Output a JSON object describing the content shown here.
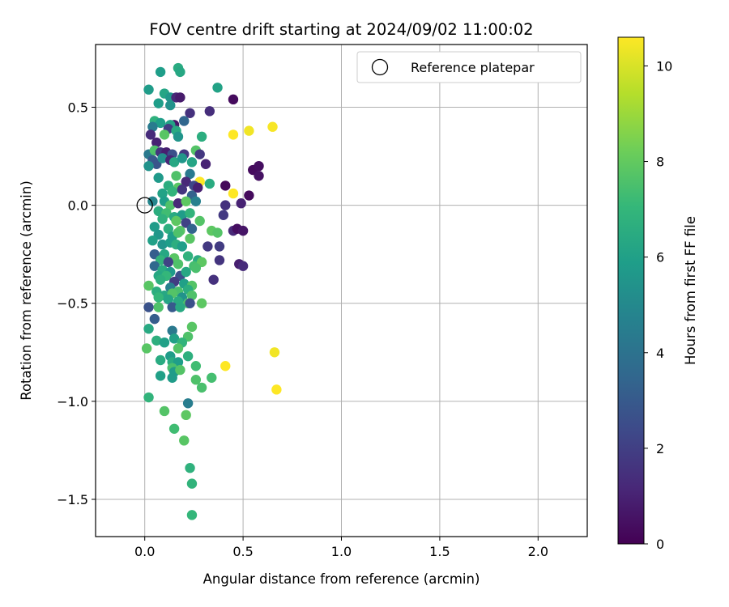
{
  "chart_data": {
    "type": "scatter",
    "title": "FOV centre drift starting at 2024/09/02 11:00:02",
    "xlabel": "Angular distance from reference (arcmin)",
    "ylabel": "Rotation from reference (arcmin)",
    "xlim": [
      -0.25,
      2.25
    ],
    "ylim": [
      -1.69,
      0.82
    ],
    "xticks": [
      0.0,
      0.5,
      1.0,
      1.5,
      2.0
    ],
    "xtick_labels": [
      "0.0",
      "0.5",
      "1.0",
      "1.5",
      "2.0"
    ],
    "yticks": [
      0.5,
      0.0,
      -0.5,
      -1.0,
      -1.5
    ],
    "ytick_labels": [
      "0.5",
      "0.0",
      "−0.5",
      "−1.0",
      "−1.5"
    ],
    "grid": true,
    "colormap": "viridis",
    "colorbar": {
      "label": "Hours from first FF file",
      "range": [
        0,
        10.6
      ],
      "ticks": [
        0,
        2,
        4,
        6,
        8,
        10
      ],
      "tick_labels": [
        "0",
        "2",
        "4",
        "6",
        "8",
        "10"
      ]
    },
    "legend": {
      "position": "top-right",
      "entries": [
        {
          "marker": "open-circle",
          "label": "Reference platepar"
        }
      ]
    },
    "reference_point": {
      "x": 0.0,
      "y": 0.0
    },
    "points": [
      [
        0.17,
        0.7,
        6.5
      ],
      [
        0.08,
        0.68,
        5.9
      ],
      [
        0.18,
        0.68,
        6.3
      ],
      [
        0.37,
        0.6,
        6.1
      ],
      [
        0.02,
        0.59,
        5.8
      ],
      [
        0.1,
        0.57,
        6.2
      ],
      [
        0.13,
        0.55,
        5.6
      ],
      [
        0.16,
        0.55,
        1.2
      ],
      [
        0.18,
        0.55,
        0.8
      ],
      [
        0.45,
        0.54,
        0.3
      ],
      [
        0.07,
        0.52,
        5.9
      ],
      [
        0.13,
        0.51,
        5.4
      ],
      [
        0.33,
        0.48,
        1.4
      ],
      [
        0.23,
        0.47,
        1.5
      ],
      [
        0.2,
        0.43,
        3.5
      ],
      [
        0.05,
        0.43,
        6.8
      ],
      [
        0.08,
        0.42,
        5.9
      ],
      [
        0.15,
        0.41,
        0.7
      ],
      [
        0.13,
        0.41,
        6.1
      ],
      [
        0.04,
        0.4,
        4.4
      ],
      [
        0.12,
        0.39,
        1.9
      ],
      [
        0.16,
        0.38,
        6.4
      ],
      [
        0.53,
        0.38,
        10.4
      ],
      [
        0.65,
        0.4,
        10.5
      ],
      [
        0.45,
        0.36,
        10.6
      ],
      [
        0.03,
        0.36,
        1.3
      ],
      [
        0.1,
        0.36,
        7.8
      ],
      [
        0.17,
        0.35,
        5.5
      ],
      [
        0.29,
        0.35,
        6.6
      ],
      [
        0.06,
        0.32,
        1.0
      ],
      [
        0.02,
        0.26,
        4.3
      ],
      [
        0.05,
        0.28,
        7.6
      ],
      [
        0.08,
        0.27,
        1.6
      ],
      [
        0.11,
        0.27,
        0.9
      ],
      [
        0.14,
        0.26,
        2.6
      ],
      [
        0.2,
        0.26,
        1.8
      ],
      [
        0.26,
        0.28,
        7.7
      ],
      [
        0.28,
        0.26,
        1.7
      ],
      [
        0.04,
        0.23,
        3.0
      ],
      [
        0.06,
        0.21,
        2.8
      ],
      [
        0.09,
        0.24,
        5.2
      ],
      [
        0.13,
        0.23,
        1.1
      ],
      [
        0.15,
        0.22,
        6.3
      ],
      [
        0.19,
        0.24,
        5.6
      ],
      [
        0.24,
        0.22,
        6.2
      ],
      [
        0.31,
        0.21,
        1.0
      ],
      [
        0.02,
        0.2,
        5.4
      ],
      [
        0.55,
        0.18,
        0.3
      ],
      [
        0.58,
        0.2,
        0.4
      ],
      [
        0.58,
        0.15,
        0.5
      ],
      [
        0.07,
        0.14,
        5.7
      ],
      [
        0.16,
        0.15,
        7.6
      ],
      [
        0.23,
        0.16,
        4.3
      ],
      [
        0.28,
        0.12,
        10.6
      ],
      [
        0.33,
        0.11,
        6.5
      ],
      [
        0.41,
        0.1,
        0.2
      ],
      [
        0.12,
        0.1,
        6.6
      ],
      [
        0.17,
        0.09,
        7.8
      ],
      [
        0.21,
        0.12,
        1.2
      ],
      [
        0.25,
        0.1,
        2.3
      ],
      [
        0.09,
        0.06,
        6.1
      ],
      [
        0.14,
        0.07,
        6.9
      ],
      [
        0.19,
        0.08,
        1.6
      ],
      [
        0.24,
        0.05,
        3.3
      ],
      [
        0.27,
        0.09,
        0.9
      ],
      [
        0.45,
        0.06,
        10.6
      ],
      [
        0.53,
        0.05,
        0.3
      ],
      [
        0.49,
        0.01,
        1.0
      ],
      [
        0.04,
        0.02,
        4.9
      ],
      [
        0.1,
        0.02,
        5.9
      ],
      [
        0.13,
        0.0,
        7.6
      ],
      [
        0.17,
        0.01,
        1.2
      ],
      [
        0.21,
        0.02,
        7.9
      ],
      [
        0.26,
        0.02,
        4.6
      ],
      [
        0.41,
        0.0,
        1.5
      ],
      [
        0.07,
        -0.03,
        6.6
      ],
      [
        0.11,
        -0.04,
        7.3
      ],
      [
        0.15,
        -0.06,
        6.4
      ],
      [
        0.19,
        -0.05,
        5.8
      ],
      [
        0.23,
        -0.04,
        6.9
      ],
      [
        0.4,
        -0.05,
        1.8
      ],
      [
        0.09,
        -0.07,
        6.8
      ],
      [
        0.16,
        -0.08,
        7.9
      ],
      [
        0.21,
        -0.09,
        2.1
      ],
      [
        0.28,
        -0.08,
        7.7
      ],
      [
        0.05,
        -0.11,
        5.8
      ],
      [
        0.12,
        -0.12,
        6.7
      ],
      [
        0.18,
        -0.13,
        7.8
      ],
      [
        0.24,
        -0.12,
        3.4
      ],
      [
        0.34,
        -0.13,
        7.9
      ],
      [
        0.37,
        -0.14,
        7.7
      ],
      [
        0.45,
        -0.13,
        1.2
      ],
      [
        0.47,
        -0.12,
        0.4
      ],
      [
        0.5,
        -0.13,
        0.6
      ],
      [
        0.07,
        -0.15,
        5.6
      ],
      [
        0.14,
        -0.16,
        5.9
      ],
      [
        0.17,
        -0.14,
        7.6
      ],
      [
        0.23,
        -0.17,
        7.8
      ],
      [
        0.04,
        -0.18,
        6.0
      ],
      [
        0.09,
        -0.2,
        5.5
      ],
      [
        0.13,
        -0.19,
        5.9
      ],
      [
        0.16,
        -0.2,
        6.6
      ],
      [
        0.19,
        -0.21,
        5.9
      ],
      [
        0.32,
        -0.21,
        1.8
      ],
      [
        0.38,
        -0.21,
        1.9
      ],
      [
        0.05,
        -0.25,
        3.2
      ],
      [
        0.1,
        -0.25,
        6.3
      ],
      [
        0.15,
        -0.27,
        7.8
      ],
      [
        0.22,
        -0.26,
        6.8
      ],
      [
        0.27,
        -0.28,
        6.5
      ],
      [
        0.08,
        -0.28,
        6.9
      ],
      [
        0.12,
        -0.29,
        2.1
      ],
      [
        0.17,
        -0.3,
        7.6
      ],
      [
        0.25,
        -0.31,
        7.4
      ],
      [
        0.29,
        -0.29,
        7.9
      ],
      [
        0.38,
        -0.28,
        1.6
      ],
      [
        0.48,
        -0.3,
        0.9
      ],
      [
        0.5,
        -0.31,
        1.3
      ],
      [
        0.05,
        -0.31,
        3.6
      ],
      [
        0.09,
        -0.33,
        6.5
      ],
      [
        0.13,
        -0.34,
        5.7
      ],
      [
        0.18,
        -0.36,
        2.6
      ],
      [
        0.21,
        -0.34,
        6.3
      ],
      [
        0.26,
        -0.32,
        7.5
      ],
      [
        0.07,
        -0.36,
        6.3
      ],
      [
        0.11,
        -0.36,
        7.0
      ],
      [
        0.35,
        -0.38,
        1.5
      ],
      [
        0.02,
        -0.41,
        7.8
      ],
      [
        0.08,
        -0.38,
        6.7
      ],
      [
        0.15,
        -0.39,
        1.9
      ],
      [
        0.2,
        -0.4,
        6.0
      ],
      [
        0.24,
        -0.41,
        7.7
      ],
      [
        0.13,
        -0.42,
        4.6
      ],
      [
        0.17,
        -0.44,
        7.5
      ],
      [
        0.22,
        -0.43,
        6.6
      ],
      [
        0.06,
        -0.44,
        6.6
      ],
      [
        0.1,
        -0.46,
        6.3
      ],
      [
        0.14,
        -0.45,
        7.7
      ],
      [
        0.19,
        -0.47,
        5.4
      ],
      [
        0.24,
        -0.46,
        7.6
      ],
      [
        0.07,
        -0.47,
        7.0
      ],
      [
        0.12,
        -0.48,
        6.2
      ],
      [
        0.17,
        -0.49,
        6.5
      ],
      [
        0.22,
        -0.5,
        7.6
      ],
      [
        0.29,
        -0.5,
        7.9
      ],
      [
        0.02,
        -0.52,
        2.7
      ],
      [
        0.07,
        -0.52,
        7.6
      ],
      [
        0.14,
        -0.52,
        3.0
      ],
      [
        0.18,
        -0.52,
        6.4
      ],
      [
        0.23,
        -0.5,
        2.6
      ],
      [
        0.05,
        -0.58,
        3.1
      ],
      [
        0.24,
        -0.62,
        7.8
      ],
      [
        0.02,
        -0.63,
        6.4
      ],
      [
        0.14,
        -0.64,
        4.3
      ],
      [
        0.15,
        -0.68,
        6.0
      ],
      [
        0.22,
        -0.67,
        7.6
      ],
      [
        0.06,
        -0.69,
        6.7
      ],
      [
        0.19,
        -0.7,
        6.9
      ],
      [
        0.1,
        -0.7,
        6.0
      ],
      [
        0.01,
        -0.73,
        7.8
      ],
      [
        0.17,
        -0.73,
        7.7
      ],
      [
        0.13,
        -0.77,
        5.8
      ],
      [
        0.22,
        -0.77,
        6.7
      ],
      [
        0.08,
        -0.79,
        6.5
      ],
      [
        0.14,
        -0.8,
        6.5
      ],
      [
        0.17,
        -0.8,
        5.9
      ],
      [
        0.14,
        -0.83,
        7.5
      ],
      [
        0.26,
        -0.82,
        7.3
      ],
      [
        0.15,
        -0.85,
        5.8
      ],
      [
        0.18,
        -0.84,
        7.7
      ],
      [
        0.41,
        -0.82,
        10.6
      ],
      [
        0.66,
        -0.75,
        10.4
      ],
      [
        0.08,
        -0.87,
        6.0
      ],
      [
        0.14,
        -0.88,
        5.8
      ],
      [
        0.26,
        -0.89,
        7.6
      ],
      [
        0.34,
        -0.88,
        7.4
      ],
      [
        0.29,
        -0.93,
        7.5
      ],
      [
        0.67,
        -0.94,
        10.6
      ],
      [
        0.02,
        -0.98,
        6.9
      ],
      [
        0.22,
        -1.01,
        4.5
      ],
      [
        0.1,
        -1.05,
        7.7
      ],
      [
        0.21,
        -1.07,
        7.9
      ],
      [
        0.15,
        -1.14,
        7.3
      ],
      [
        0.2,
        -1.2,
        7.8
      ],
      [
        0.23,
        -1.34,
        6.8
      ],
      [
        0.24,
        -1.42,
        6.9
      ],
      [
        0.24,
        -1.58,
        7.0
      ]
    ]
  }
}
